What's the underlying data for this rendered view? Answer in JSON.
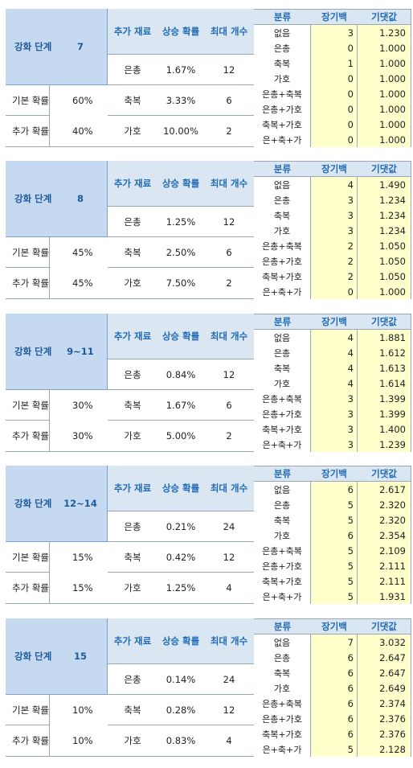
{
  "headers": {
    "stage_label": "강화 단계",
    "material": "추가 재료",
    "rate": "상승 확률",
    "max": "최대 개수",
    "category": "분류",
    "pity": "장기백",
    "expected": "기댓값",
    "base_label": "기본 확률",
    "extra_label": "추가 확률"
  },
  "blocks": [
    {
      "stage": "7",
      "base": "60%",
      "extra": "40%",
      "materials": [
        {
          "name": "은총",
          "rate": "1.67%",
          "max": "12"
        },
        {
          "name": "축복",
          "rate": "3.33%",
          "max": "6"
        },
        {
          "name": "가호",
          "rate": "10.00%",
          "max": "2"
        }
      ],
      "rows": [
        {
          "cat": "없음",
          "pity": "3",
          "exp": "1.230"
        },
        {
          "cat": "은총",
          "pity": "0",
          "exp": "1.000"
        },
        {
          "cat": "축복",
          "pity": "1",
          "exp": "1.000"
        },
        {
          "cat": "가호",
          "pity": "0",
          "exp": "1.000"
        },
        {
          "cat": "은총+축복",
          "pity": "0",
          "exp": "1.000"
        },
        {
          "cat": "은총+가호",
          "pity": "0",
          "exp": "1.000"
        },
        {
          "cat": "축복+가호",
          "pity": "0",
          "exp": "1.000"
        },
        {
          "cat": "은+축+가",
          "pity": "0",
          "exp": "1.000"
        }
      ]
    },
    {
      "stage": "8",
      "base": "45%",
      "extra": "45%",
      "materials": [
        {
          "name": "은총",
          "rate": "1.25%",
          "max": "12"
        },
        {
          "name": "축복",
          "rate": "2.50%",
          "max": "6"
        },
        {
          "name": "가호",
          "rate": "7.50%",
          "max": "2"
        }
      ],
      "rows": [
        {
          "cat": "없음",
          "pity": "4",
          "exp": "1.490"
        },
        {
          "cat": "은총",
          "pity": "3",
          "exp": "1.234"
        },
        {
          "cat": "축복",
          "pity": "3",
          "exp": "1.234"
        },
        {
          "cat": "가호",
          "pity": "3",
          "exp": "1.234"
        },
        {
          "cat": "은총+축복",
          "pity": "2",
          "exp": "1.050"
        },
        {
          "cat": "은총+가호",
          "pity": "2",
          "exp": "1.050"
        },
        {
          "cat": "축복+가호",
          "pity": "2",
          "exp": "1.050"
        },
        {
          "cat": "은+축+가",
          "pity": "0",
          "exp": "1.000"
        }
      ]
    },
    {
      "stage": "9~11",
      "base": "30%",
      "extra": "30%",
      "materials": [
        {
          "name": "은총",
          "rate": "0.84%",
          "max": "12"
        },
        {
          "name": "축복",
          "rate": "1.67%",
          "max": "6"
        },
        {
          "name": "가호",
          "rate": "5.00%",
          "max": "2"
        }
      ],
      "rows": [
        {
          "cat": "없음",
          "pity": "4",
          "exp": "1.881"
        },
        {
          "cat": "은총",
          "pity": "4",
          "exp": "1.612"
        },
        {
          "cat": "축복",
          "pity": "4",
          "exp": "1.613"
        },
        {
          "cat": "가호",
          "pity": "4",
          "exp": "1.614"
        },
        {
          "cat": "은총+축복",
          "pity": "3",
          "exp": "1.399"
        },
        {
          "cat": "은총+가호",
          "pity": "3",
          "exp": "1.399"
        },
        {
          "cat": "축복+가호",
          "pity": "3",
          "exp": "1.400"
        },
        {
          "cat": "은+축+가",
          "pity": "3",
          "exp": "1.239"
        }
      ]
    },
    {
      "stage": "12~14",
      "base": "15%",
      "extra": "15%",
      "materials": [
        {
          "name": "은총",
          "rate": "0.21%",
          "max": "24"
        },
        {
          "name": "축복",
          "rate": "0.42%",
          "max": "12"
        },
        {
          "name": "가호",
          "rate": "1.25%",
          "max": "4"
        }
      ],
      "rows": [
        {
          "cat": "없음",
          "pity": "6",
          "exp": "2.617"
        },
        {
          "cat": "은총",
          "pity": "5",
          "exp": "2.320"
        },
        {
          "cat": "축복",
          "pity": "5",
          "exp": "2.320"
        },
        {
          "cat": "가호",
          "pity": "6",
          "exp": "2.354"
        },
        {
          "cat": "은총+축복",
          "pity": "5",
          "exp": "2.109"
        },
        {
          "cat": "은총+가호",
          "pity": "5",
          "exp": "2.111"
        },
        {
          "cat": "축복+가호",
          "pity": "5",
          "exp": "2.111"
        },
        {
          "cat": "은+축+가",
          "pity": "5",
          "exp": "1.931"
        }
      ]
    },
    {
      "stage": "15",
      "base": "10%",
      "extra": "10%",
      "materials": [
        {
          "name": "은총",
          "rate": "0.14%",
          "max": "24"
        },
        {
          "name": "축복",
          "rate": "0.28%",
          "max": "12"
        },
        {
          "name": "가호",
          "rate": "0.83%",
          "max": "4"
        }
      ],
      "rows": [
        {
          "cat": "없음",
          "pity": "7",
          "exp": "3.032"
        },
        {
          "cat": "은총",
          "pity": "6",
          "exp": "2.647"
        },
        {
          "cat": "축복",
          "pity": "6",
          "exp": "2.647"
        },
        {
          "cat": "가호",
          "pity": "6",
          "exp": "2.649"
        },
        {
          "cat": "은총+축복",
          "pity": "6",
          "exp": "2.374"
        },
        {
          "cat": "은총+가호",
          "pity": "6",
          "exp": "2.376"
        },
        {
          "cat": "축복+가호",
          "pity": "6",
          "exp": "2.376"
        },
        {
          "cat": "은+축+가",
          "pity": "5",
          "exp": "2.128"
        }
      ]
    }
  ]
}
